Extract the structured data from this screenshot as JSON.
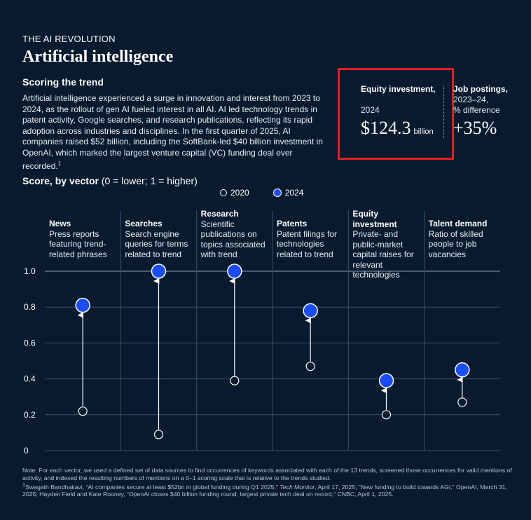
{
  "header": {
    "eyebrow": "THE AI REVOLUTION",
    "title": "Artificial intelligence",
    "subhead": "Scoring the trend",
    "intro": "Artificial intelligence experienced a surge in innovation and interest from 2023 to 2024, as the rollout of gen AI fueled interest in all AI. AI led technology trends in patent activity, Google searches, and research publications, reflecting its rapid adoption across industries and disciplines. In the first quarter of 2025, AI companies raised $52 billion, including the SoftBank-led $40 billion investment in OpenAI, which marked the largest venture capital (VC) funding deal ever recorded.",
    "intro_footnote": "1"
  },
  "kpis": {
    "equity_label": "Equity investment,",
    "equity_year": "2024",
    "equity_value": "$124.3",
    "equity_unit": "billion",
    "jobs_label": "Job postings,",
    "jobs_sub1": "2023–24,",
    "jobs_sub2": "% difference",
    "jobs_value": "+35%"
  },
  "score": {
    "title_bold": "Score, by vector",
    "title_rest": " (0 = lower; 1 = higher)",
    "legend_2020": "2020",
    "legend_2024": "2024"
  },
  "colors": {
    "background": "#071a2e",
    "marker_2024": "#1a4dff",
    "highlight_box": "#e32020"
  },
  "chart_data": {
    "type": "dumbbell",
    "y_axis": {
      "min": 0,
      "max": 1.0,
      "ticks": [
        "0",
        "0.2",
        "0.4",
        "0.6",
        "0.8",
        "1.0"
      ]
    },
    "series": [
      {
        "name": "2020"
      },
      {
        "name": "2024"
      }
    ],
    "vectors": [
      {
        "name": "News",
        "desc": "Press reports featuring trend-related phrases",
        "v2020": 0.22,
        "v2024": 0.81
      },
      {
        "name": "Searches",
        "desc": "Search engine queries for terms related to trend",
        "v2020": 0.09,
        "v2024": 1.0
      },
      {
        "name": "Research",
        "desc": "Scientific publications on topics associated with trend",
        "v2020": 0.39,
        "v2024": 1.0
      },
      {
        "name": "Patents",
        "desc": "Patent filings for technologies related to trend",
        "v2020": 0.47,
        "v2024": 0.78
      },
      {
        "name": "Equity investment",
        "desc": "Private- and public-market capital raises for relevant technologies",
        "v2020": 0.2,
        "v2024": 0.39
      },
      {
        "name": "Talent demand",
        "desc": "Ratio of skilled people to job vacancies",
        "v2020": 0.27,
        "v2024": 0.45
      }
    ]
  },
  "footer": {
    "note": "Note: For each vector, we used a defined set of data sources to find occurrences of keywords associated with each of the 13 trends, screened those occurrences for valid mentions of activity, and indexed the resulting numbers of mentions on a 0–1 scoring scale that is relative to the trends studied.",
    "source_marker": "1",
    "source_a": "Swagath Bandhakavi, “AI companies secure at least $52bn in global funding during Q1 2025,” ",
    "source_pub": "Tech Monitor",
    "source_b": ", April 17, 2025; “New funding to build towards AGI,” OpenAI, March 31, 2025; Hayden Field and Kate Rooney, “OpenAI closes $40 billion funding round, largest private tech deal on record,” CNBC, April 1, 2025."
  }
}
